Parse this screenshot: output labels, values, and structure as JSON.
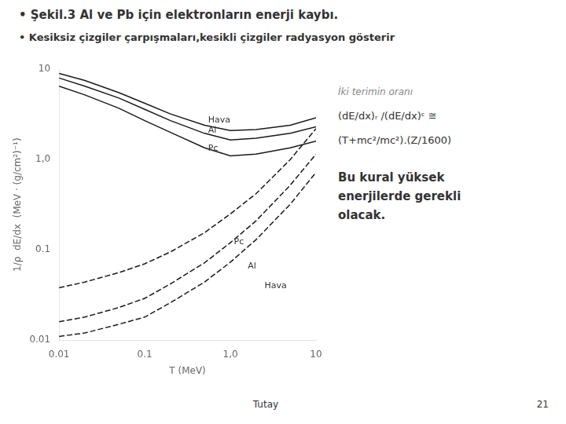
{
  "chart_data": {
    "type": "line",
    "title": "• Şekil.3 Al ve  Pb için elektronların enerji kaybı.",
    "subtitle": "• Kesiksiz çizgiler çarpışmaları,kesikli çizgiler radyasyon gösterir",
    "x_label": "T (MeV)",
    "y_label": "1/ρ  dE/dx  (MeV · (g/cm²)⁻¹)",
    "log": true,
    "grid": false,
    "xlim": [
      0.01,
      10
    ],
    "ylim": [
      0.01,
      10
    ],
    "xticks": [
      0.01,
      0.1,
      {
        "value": 1,
        "label": "1,0"
      },
      10
    ],
    "yticks": [
      0.01,
      0.1,
      {
        "value": 1,
        "label": "1,0"
      },
      10
    ],
    "x": [
      0.01,
      0.02,
      0.05,
      0.1,
      0.2,
      0.5,
      1.0,
      2.0,
      5.0,
      10.0
    ],
    "series": [
      {
        "color": "#1a1a1a",
        "line_style": "solid",
        "values": [
          9.0,
          7.5,
          5.5,
          4.2,
          3.2,
          2.4,
          2.1,
          2.15,
          2.4,
          2.9
        ]
      },
      {
        "color": "#1a1a1a",
        "line_style": "solid",
        "values": [
          8.0,
          6.5,
          4.8,
          3.6,
          2.7,
          1.95,
          1.65,
          1.72,
          1.95,
          2.3
        ]
      },
      {
        "color": "#1a1a1a",
        "line_style": "solid",
        "values": [
          6.5,
          5.2,
          3.7,
          2.7,
          2.0,
          1.35,
          1.1,
          1.15,
          1.35,
          1.6
        ]
      },
      {
        "color": "#1a1a1a",
        "line_style": "dashed",
        "values": [
          0.038,
          0.044,
          0.056,
          0.07,
          0.095,
          0.155,
          0.25,
          0.42,
          1.0,
          2.2
        ]
      },
      {
        "color": "#1a1a1a",
        "line_style": "dashed",
        "values": [
          0.016,
          0.018,
          0.023,
          0.029,
          0.042,
          0.072,
          0.12,
          0.21,
          0.52,
          1.15
        ]
      },
      {
        "color": "#1a1a1a",
        "line_style": "dashed",
        "values": [
          0.011,
          0.012,
          0.015,
          0.018,
          0.026,
          0.044,
          0.073,
          0.13,
          0.32,
          0.72
        ]
      }
    ],
    "annotations": [
      {
        "text": "Hava",
        "x": 0.55,
        "y": 2.55
      },
      {
        "text": "Al",
        "x": 0.55,
        "y": 2.0
      },
      {
        "text": "Pc",
        "x": 0.55,
        "y": 1.25
      },
      {
        "text": "Pc",
        "x": 1.1,
        "y": 0.115
      },
      {
        "text": "Al",
        "x": 1.6,
        "y": 0.062
      },
      {
        "text": "Hava",
        "x": 2.5,
        "y": 0.038
      }
    ],
    "side_texts": [
      "İki terimin oranı",
      "(dE/dx)ᵣ /(dE/dx)ᶜ ≅",
      "(T+mc²/mc²).(Z/1600)",
      "Bu kural yüksek\nenerjilerde gerekli\nolacak."
    ],
    "footer": [
      "Tutay",
      "21"
    ]
  }
}
